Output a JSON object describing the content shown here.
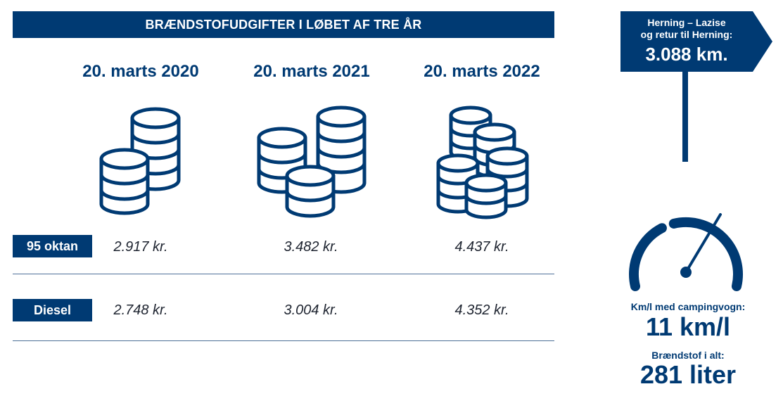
{
  "header": {
    "title": "BRÆNDSTOFUDGIFTER I LØBET AF TRE ÅR"
  },
  "colors": {
    "navy": "#003a73",
    "divider": "#4d6f97",
    "text": "#1e2430"
  },
  "chart_data": {
    "type": "table",
    "title": "BRÆNDSTOFUDGIFTER I LØBET AF TRE ÅR",
    "columns": [
      "20. marts 2020",
      "20. marts 2021",
      "20. marts 2022"
    ],
    "rows": [
      {
        "label": "95 oktan",
        "values": [
          "2.917 kr.",
          "3.482 kr.",
          "4.437 kr."
        ]
      },
      {
        "label": "Diesel",
        "values": [
          "2.748 kr.",
          "3.004 kr.",
          "4.352 kr."
        ]
      }
    ],
    "icons": [
      "coin-stack-2-icon",
      "coin-stack-3-icon",
      "coin-stack-5-icon"
    ]
  },
  "route_sign": {
    "line1": "Herning – Lazise",
    "line2": "og retur til Herning:",
    "distance": "3.088 km."
  },
  "stats": {
    "efficiency_label": "Km/l med campingvogn:",
    "efficiency_value": "11 km/l",
    "fuel_label": "Brændstof i alt:",
    "fuel_value": "281 liter"
  },
  "icons": {
    "gauge": "speedometer-icon",
    "sign": "road-sign-icon"
  }
}
